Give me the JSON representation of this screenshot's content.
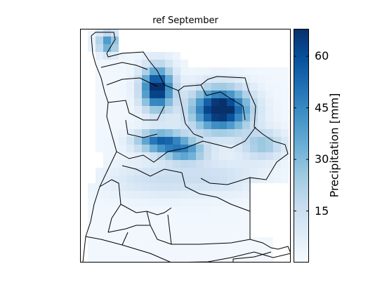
{
  "title": "ref September",
  "colorbar": {
    "label": "Precipitation [mm]",
    "ticks": [
      15,
      30,
      45,
      60
    ],
    "range": [
      0,
      68
    ],
    "colormap": [
      "#f7fbff",
      "#deebf7",
      "#c6dbef",
      "#9ecae1",
      "#6baed6",
      "#4292c6",
      "#2171b5",
      "#08519c",
      "#08306b"
    ]
  },
  "map": {
    "region": "Angola",
    "ocean_color": "#ffffff",
    "border_color": "#000000"
  }
}
